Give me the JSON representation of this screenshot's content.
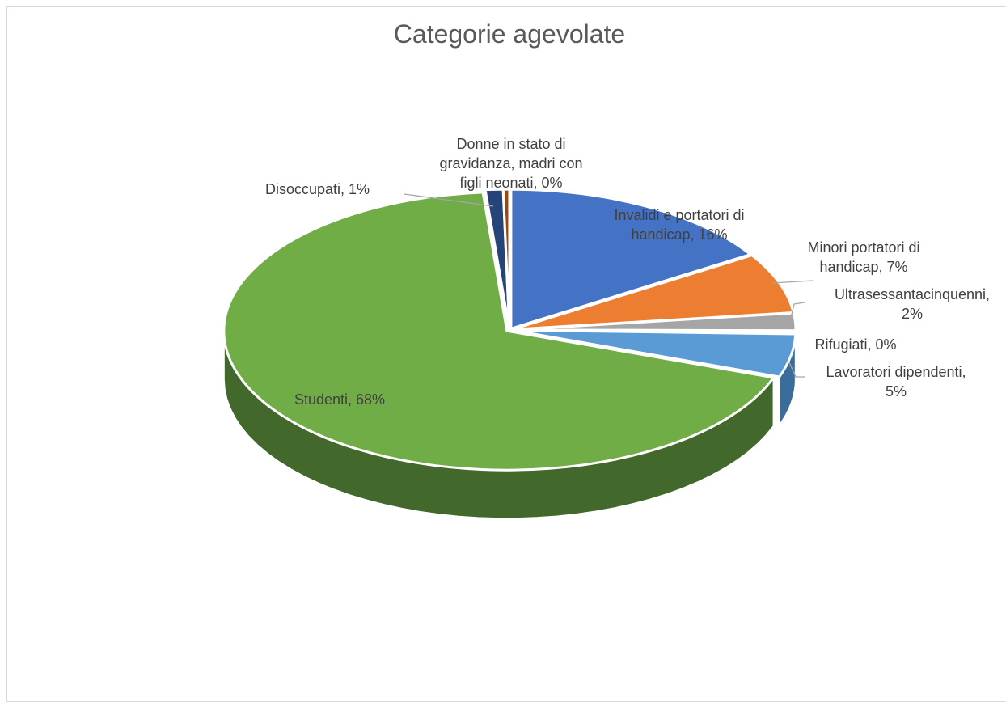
{
  "chart_data": {
    "type": "pie",
    "title": "Categorie agevolate",
    "slices": [
      {
        "name": "Invalidi e portatori di handicap",
        "value": 16,
        "label_lines": [
          "Invalidi e portatori di",
          "handicap, 16%"
        ],
        "color": "#4472c4",
        "side_color": "#2f5597"
      },
      {
        "name": "Minori portatori di handicap",
        "value": 7,
        "label_lines": [
          "Minori portatori di",
          "handicap, 7%"
        ],
        "color": "#ed7d31",
        "side_color": "#b35b1f"
      },
      {
        "name": "Ultrasessantacinquenni",
        "value": 2,
        "label_lines": [
          "Ultrasessantacinquenni,",
          "2%"
        ],
        "color": "#a5a5a5",
        "side_color": "#7b7b7b"
      },
      {
        "name": "Rifugiati",
        "value": 0,
        "label_lines": [
          "Rifugiati, 0%"
        ],
        "color": "#ffc000",
        "side_color": "#bf9000"
      },
      {
        "name": "Lavoratori dipendenti",
        "value": 5,
        "label_lines": [
          "Lavoratori dipendenti,",
          "5%"
        ],
        "color": "#5b9bd5",
        "side_color": "#3a6d9c"
      },
      {
        "name": "Studenti",
        "value": 68,
        "label_lines": [
          "Studenti, 68%"
        ],
        "color": "#70ad47",
        "side_color": "#43682b"
      },
      {
        "name": "Disoccupati",
        "value": 1,
        "label_lines": [
          "Disoccupati, 1%"
        ],
        "color": "#264478",
        "side_color": "#1a2f54"
      },
      {
        "name": "Donne in stato di gravidanza, madri con figli neonati",
        "value": 0,
        "label_lines": [
          "Donne in stato di",
          "gravidanza, madri con",
          "figli neonati, 0%"
        ],
        "color": "#9e480e",
        "side_color": "#6e3209"
      }
    ]
  }
}
